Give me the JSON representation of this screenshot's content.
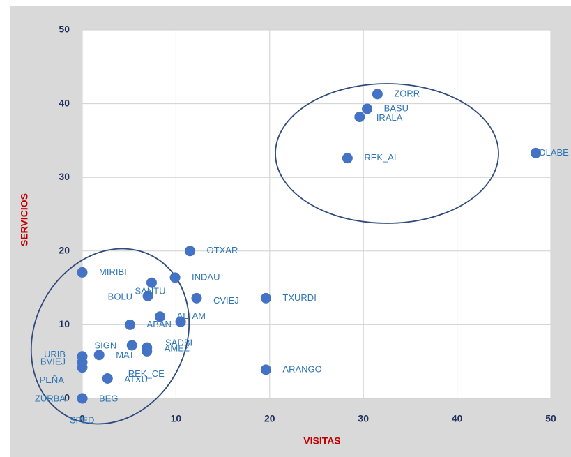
{
  "chart_data": {
    "type": "scatter",
    "xlabel": "VISITAS",
    "ylabel": "SERVICIOS",
    "color": "#4472c4",
    "xlim": [
      0,
      50
    ],
    "ylim": [
      0,
      50
    ],
    "xticks": [
      0,
      10,
      20,
      30,
      40,
      50
    ],
    "yticks": [
      0,
      10,
      20,
      30,
      40,
      50
    ],
    "grid": true,
    "labels": [
      "ZORR",
      "BASU",
      "IRALA",
      "REK_AL",
      "OLABE",
      "OTXAR",
      "MIRIBI",
      "INDAU",
      "BOLU",
      "SANTU",
      "CVIEJ",
      "TXURDI",
      "ABAN",
      "ALTAM",
      null,
      "SADBI",
      "SIGN",
      "AMEZ",
      "REK_CE",
      "MAT",
      "URIB",
      "BVIEJ",
      "PEÑA",
      "ATXU",
      "ARANGO",
      "ZURBA",
      "BEG",
      "SPED"
    ],
    "x": [
      31.5,
      30.4,
      29.6,
      28.3,
      48.4,
      11.5,
      0,
      9.9,
      7.0,
      7.4,
      12.2,
      19.6,
      5.1,
      8.3,
      10.5,
      10.5,
      5.3,
      6.9,
      6.9,
      1.8,
      0,
      0,
      0,
      2.7,
      19.6,
      0,
      0,
      0
    ],
    "y": [
      41.3,
      39.3,
      38.2,
      32.6,
      33.3,
      20.0,
      17.1,
      16.4,
      13.9,
      15.7,
      13.6,
      13.6,
      10.0,
      11.1,
      10.4,
      10.4,
      7.2,
      6.9,
      6.4,
      5.9,
      5.7,
      4.9,
      4.2,
      2.7,
      3.9,
      0,
      0,
      0
    ]
  }
}
